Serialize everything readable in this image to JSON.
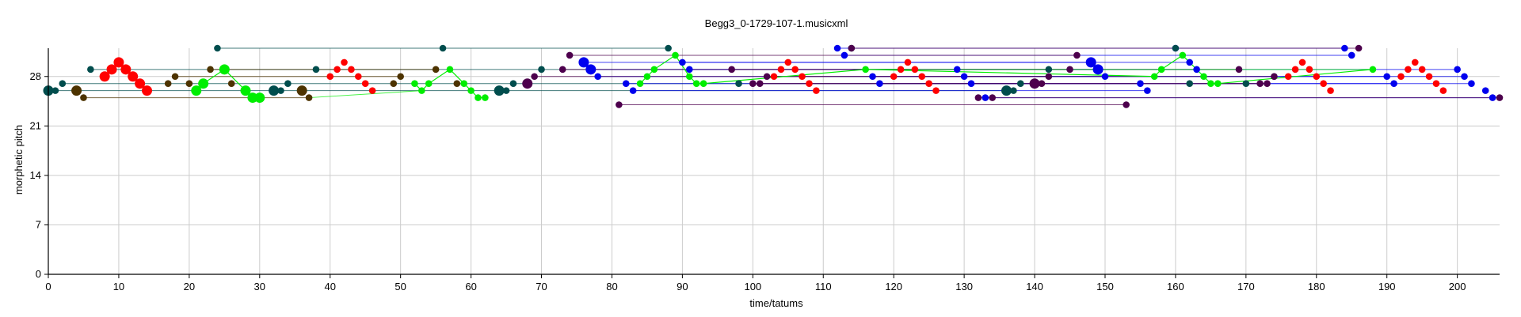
{
  "chart_data": {
    "type": "scatter",
    "title": "Begg3_0-1729-107-1.musicxml",
    "xlabel": "time/tatums",
    "ylabel": "morphetic pitch",
    "xlim": [
      0,
      206
    ],
    "ylim": [
      0,
      32
    ],
    "xticks": [
      0,
      10,
      20,
      30,
      40,
      50,
      60,
      70,
      80,
      90,
      100,
      110,
      120,
      130,
      140,
      150,
      160,
      170,
      180,
      190,
      200
    ],
    "yticks": [
      0,
      7,
      14,
      21,
      28
    ],
    "grid": true,
    "series": [
      {
        "color": "#ff0000",
        "size": "large",
        "points": [
          [
            8,
            28
          ],
          [
            9,
            29
          ],
          [
            10,
            30
          ],
          [
            11,
            29
          ],
          [
            12,
            28
          ],
          [
            13,
            27
          ],
          [
            14,
            26
          ]
        ],
        "line": false
      },
      {
        "color": "#ff0000",
        "size": "small",
        "points": [
          [
            40,
            28
          ],
          [
            41,
            29
          ],
          [
            42,
            30
          ],
          [
            43,
            29
          ],
          [
            44,
            28
          ],
          [
            45,
            27
          ],
          [
            46,
            26
          ],
          [
            103,
            28
          ],
          [
            104,
            29
          ],
          [
            105,
            30
          ],
          [
            106,
            29
          ],
          [
            107,
            28
          ],
          [
            108,
            27
          ],
          [
            109,
            26
          ],
          [
            120,
            28
          ],
          [
            121,
            29
          ],
          [
            122,
            30
          ],
          [
            123,
            29
          ],
          [
            124,
            28
          ],
          [
            125,
            27
          ],
          [
            126,
            26
          ],
          [
            176,
            28
          ],
          [
            177,
            29
          ],
          [
            178,
            30
          ],
          [
            179,
            29
          ],
          [
            180,
            28
          ],
          [
            181,
            27
          ],
          [
            182,
            26
          ],
          [
            192,
            28
          ],
          [
            193,
            29
          ],
          [
            194,
            30
          ],
          [
            195,
            29
          ],
          [
            196,
            28
          ],
          [
            197,
            27
          ],
          [
            198,
            26
          ]
        ],
        "line": false
      },
      {
        "color": "#00ee00",
        "size": "large",
        "points": [
          [
            21,
            26
          ],
          [
            22,
            27
          ],
          [
            25,
            29
          ],
          [
            28,
            26
          ],
          [
            29,
            25
          ],
          [
            30,
            25
          ]
        ],
        "line": true
      },
      {
        "color": "#00ee00",
        "size": "small",
        "points": [
          [
            52,
            27
          ],
          [
            53,
            26
          ],
          [
            54,
            27
          ],
          [
            57,
            29
          ],
          [
            59,
            27
          ],
          [
            60,
            26
          ],
          [
            61,
            25
          ],
          [
            62,
            25
          ]
        ],
        "line": true
      },
      {
        "color": "#00ee00",
        "size": "small",
        "points": [
          [
            84,
            27
          ],
          [
            85,
            28
          ],
          [
            86,
            29
          ],
          [
            89,
            31
          ],
          [
            91,
            28
          ],
          [
            92,
            27
          ],
          [
            93,
            27
          ],
          [
            116,
            29
          ],
          [
            157,
            28
          ],
          [
            158,
            29
          ],
          [
            161,
            31
          ],
          [
            164,
            28
          ],
          [
            165,
            27
          ],
          [
            166,
            27
          ],
          [
            188,
            29
          ]
        ],
        "line": true
      },
      {
        "color": "#0000ee",
        "size": "large",
        "points": [
          [
            76,
            30
          ],
          [
            77,
            29
          ],
          [
            148,
            30
          ],
          [
            149,
            29
          ]
        ],
        "line": false
      },
      {
        "color": "#0000ee",
        "size": "small",
        "points": [
          [
            78,
            28
          ],
          [
            82,
            27
          ],
          [
            83,
            26
          ],
          [
            90,
            30
          ],
          [
            91,
            29
          ],
          [
            112,
            32
          ],
          [
            113,
            31
          ],
          [
            117,
            28
          ],
          [
            118,
            27
          ],
          [
            129,
            29
          ],
          [
            130,
            28
          ],
          [
            131,
            27
          ],
          [
            133,
            25
          ],
          [
            150,
            28
          ],
          [
            155,
            27
          ],
          [
            156,
            26
          ],
          [
            160,
            32
          ],
          [
            162,
            30
          ],
          [
            163,
            29
          ],
          [
            184,
            32
          ],
          [
            185,
            31
          ],
          [
            190,
            28
          ],
          [
            191,
            27
          ],
          [
            200,
            29
          ],
          [
            201,
            28
          ],
          [
            202,
            27
          ],
          [
            204,
            26
          ],
          [
            205,
            25
          ]
        ],
        "line": false
      },
      {
        "color": "#004d4d",
        "size": "large",
        "points": [
          [
            0,
            26
          ],
          [
            32,
            26
          ],
          [
            64,
            26
          ],
          [
            136,
            26
          ]
        ],
        "line": false
      },
      {
        "color": "#004d4d",
        "size": "small",
        "points": [
          [
            1,
            26
          ],
          [
            2,
            27
          ],
          [
            6,
            29
          ],
          [
            24,
            32
          ],
          [
            33,
            26
          ],
          [
            34,
            27
          ],
          [
            38,
            29
          ],
          [
            56,
            32
          ],
          [
            65,
            26
          ],
          [
            66,
            27
          ],
          [
            70,
            29
          ],
          [
            88,
            32
          ],
          [
            98,
            27
          ],
          [
            114,
            32
          ],
          [
            137,
            26
          ],
          [
            138,
            27
          ],
          [
            142,
            29
          ],
          [
            160,
            32
          ],
          [
            162,
            27
          ],
          [
            170,
            27
          ],
          [
            174,
            28
          ]
        ],
        "line": false
      },
      {
        "color": "#4d3300",
        "size": "large",
        "points": [
          [
            4,
            26
          ],
          [
            36,
            26
          ]
        ],
        "line": false
      },
      {
        "color": "#4d3300",
        "size": "small",
        "points": [
          [
            5,
            25
          ],
          [
            17,
            27
          ],
          [
            18,
            28
          ],
          [
            20,
            27
          ],
          [
            23,
            29
          ],
          [
            26,
            27
          ],
          [
            37,
            25
          ],
          [
            49,
            27
          ],
          [
            50,
            28
          ],
          [
            55,
            29
          ],
          [
            58,
            27
          ]
        ],
        "line": false
      },
      {
        "color": "#4d004d",
        "size": "large",
        "points": [
          [
            68,
            27
          ],
          [
            140,
            27
          ]
        ],
        "line": false
      },
      {
        "color": "#4d004d",
        "size": "small",
        "points": [
          [
            69,
            28
          ],
          [
            73,
            29
          ],
          [
            74,
            31
          ],
          [
            81,
            24
          ],
          [
            97,
            29
          ],
          [
            100,
            27
          ],
          [
            101,
            27
          ],
          [
            102,
            28
          ],
          [
            114,
            32
          ],
          [
            132,
            25
          ],
          [
            134,
            25
          ],
          [
            141,
            27
          ],
          [
            142,
            28
          ],
          [
            145,
            29
          ],
          [
            146,
            31
          ],
          [
            153,
            24
          ],
          [
            169,
            29
          ],
          [
            172,
            27
          ],
          [
            173,
            27
          ],
          [
            174,
            28
          ],
          [
            186,
            32
          ],
          [
            206,
            25
          ]
        ],
        "line": false
      }
    ],
    "long_lines": [
      {
        "color": "#004d4d",
        "from": [
          24,
          32
        ],
        "to": [
          88,
          32
        ]
      },
      {
        "color": "#004d4d",
        "from": [
          0,
          26
        ],
        "to": [
          136,
          26
        ]
      },
      {
        "color": "#004d4d",
        "from": [
          6,
          29
        ],
        "to": [
          142,
          29
        ]
      },
      {
        "color": "#004d4d",
        "from": [
          2,
          27
        ],
        "to": [
          138,
          27
        ]
      },
      {
        "color": "#4d3300",
        "from": [
          5,
          25
        ],
        "to": [
          37,
          25
        ]
      },
      {
        "color": "#4d3300",
        "from": [
          18,
          28
        ],
        "to": [
          50,
          28
        ]
      },
      {
        "color": "#4d3300",
        "from": [
          23,
          29
        ],
        "to": [
          55,
          29
        ]
      },
      {
        "color": "#0000ee",
        "from": [
          76,
          30
        ],
        "to": [
          148,
          30
        ]
      },
      {
        "color": "#0000ee",
        "from": [
          77,
          29
        ],
        "to": [
          149,
          29
        ]
      },
      {
        "color": "#0000ee",
        "from": [
          78,
          28
        ],
        "to": [
          150,
          28
        ]
      },
      {
        "color": "#0000ee",
        "from": [
          82,
          27
        ],
        "to": [
          155,
          27
        ]
      },
      {
        "color": "#0000ee",
        "from": [
          83,
          26
        ],
        "to": [
          156,
          26
        ]
      },
      {
        "color": "#0000ee",
        "from": [
          112,
          32
        ],
        "to": [
          184,
          32
        ]
      },
      {
        "color": "#0000ee",
        "from": [
          113,
          31
        ],
        "to": [
          185,
          31
        ]
      },
      {
        "color": "#0000ee",
        "from": [
          90,
          30
        ],
        "to": [
          162,
          30
        ]
      },
      {
        "color": "#0000ee",
        "from": [
          91,
          29
        ],
        "to": [
          163,
          29
        ]
      },
      {
        "color": "#0000ee",
        "from": [
          117,
          28
        ],
        "to": [
          190,
          28
        ]
      },
      {
        "color": "#0000ee",
        "from": [
          118,
          27
        ],
        "to": [
          191,
          27
        ]
      },
      {
        "color": "#0000ee",
        "from": [
          129,
          29
        ],
        "to": [
          200,
          29
        ]
      },
      {
        "color": "#0000ee",
        "from": [
          131,
          27
        ],
        "to": [
          202,
          27
        ]
      },
      {
        "color": "#0000ee",
        "from": [
          133,
          25
        ],
        "to": [
          205,
          25
        ]
      },
      {
        "color": "#0000ee",
        "from": [
          130,
          28
        ],
        "to": [
          201,
          28
        ]
      },
      {
        "color": "#4d004d",
        "from": [
          81,
          24
        ],
        "to": [
          153,
          24
        ]
      },
      {
        "color": "#4d004d",
        "from": [
          74,
          31
        ],
        "to": [
          146,
          31
        ]
      },
      {
        "color": "#4d004d",
        "from": [
          73,
          29
        ],
        "to": [
          145,
          29
        ]
      },
      {
        "color": "#4d004d",
        "from": [
          69,
          28
        ],
        "to": [
          142,
          28
        ]
      },
      {
        "color": "#4d004d",
        "from": [
          97,
          29
        ],
        "to": [
          169,
          29
        ]
      },
      {
        "color": "#4d004d",
        "from": [
          100,
          27
        ],
        "to": [
          172,
          27
        ]
      },
      {
        "color": "#4d004d",
        "from": [
          101,
          27
        ],
        "to": [
          173,
          27
        ]
      },
      {
        "color": "#4d004d",
        "from": [
          102,
          28
        ],
        "to": [
          174,
          28
        ]
      },
      {
        "color": "#4d004d",
        "from": [
          114,
          32
        ],
        "to": [
          186,
          32
        ]
      },
      {
        "color": "#4d004d",
        "from": [
          132,
          25
        ],
        "to": [
          206,
          25
        ]
      },
      {
        "color": "#00ee00",
        "from": [
          116,
          29
        ],
        "to": [
          188,
          29
        ]
      },
      {
        "color": "#00ee00",
        "from": [
          37,
          25
        ],
        "to": [
          53,
          26
        ]
      }
    ]
  }
}
